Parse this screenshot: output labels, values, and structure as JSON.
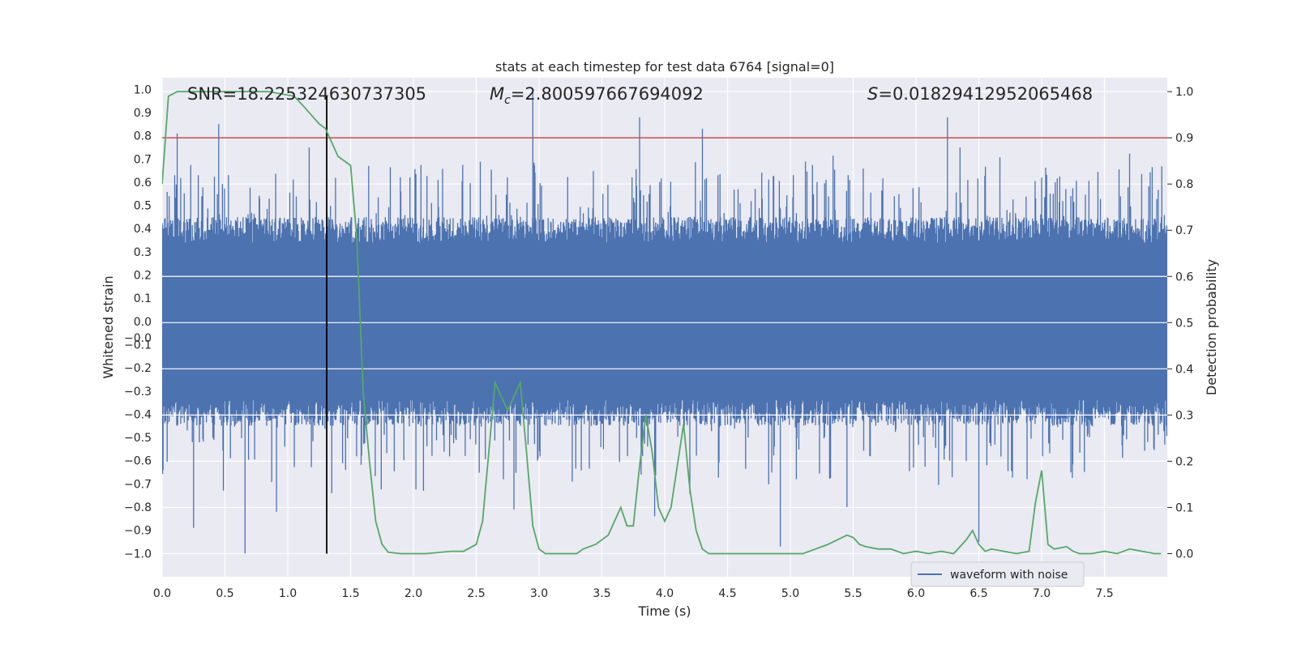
{
  "chart_data": {
    "type": "line",
    "title": "stats at each timestep for test data 6764 [signal=0]",
    "xlabel": "Time (s)",
    "ylabel_left": "Whitened strain",
    "ylabel_right": "Detection probability",
    "xlim": [
      0.0,
      8.0
    ],
    "ylim_left": [
      -1.1,
      1.05
    ],
    "ylim_right": [
      -0.05,
      1.03
    ],
    "x_ticks": [
      "0.0",
      "0.5",
      "1.0",
      "1.5",
      "2.0",
      "2.5",
      "3.0",
      "3.5",
      "4.0",
      "4.5",
      "5.0",
      "5.5",
      "6.0",
      "6.5",
      "7.0",
      "7.5"
    ],
    "y_left_ticks": [
      "1.0",
      "0.9",
      "0.8",
      "0.7",
      "0.6",
      "0.5",
      "0.4",
      "0.3",
      "0.2",
      "0.1",
      "0.0",
      "-0.0",
      "-0.1",
      "-0.2",
      "-0.3",
      "-0.4",
      "-0.5",
      "-0.6",
      "-0.7",
      "-0.8",
      "-0.9",
      "-1.0"
    ],
    "y_right_ticks": [
      "1.0",
      "0.9",
      "0.8",
      "0.7",
      "0.6",
      "0.5",
      "0.4",
      "0.3",
      "0.2",
      "0.1",
      "0.0"
    ],
    "annotations": {
      "snr": "SNR=18.225324630737305",
      "mc": "=2.800597667694092",
      "s": "=0.01829412952065468"
    },
    "threshold": 0.9,
    "marker_time": 1.31,
    "legend": {
      "label": "waveform with noise",
      "placement": "lower-right"
    },
    "series": [
      {
        "name": "waveform with noise",
        "color": "#4c72b0",
        "description": "noise-dominated whitened strain; peak amplitudes (data units)",
        "peaks_high": [
          [
            0.12,
            0.81
          ],
          [
            0.45,
            0.85
          ],
          [
            1.17,
            0.75
          ],
          [
            2.95,
            0.99
          ],
          [
            3.8,
            0.88
          ],
          [
            4.3,
            0.83
          ],
          [
            6.25,
            0.88
          ],
          [
            6.35,
            0.75
          ],
          [
            7.0,
            0.62
          ]
        ],
        "peaks_low": [
          [
            0.25,
            -0.89
          ],
          [
            0.66,
            -1.0
          ],
          [
            0.91,
            -0.82
          ],
          [
            1.35,
            -0.74
          ],
          [
            2.8,
            -0.81
          ],
          [
            3.92,
            -0.84
          ],
          [
            4.92,
            -0.97
          ],
          [
            5.45,
            -0.8
          ],
          [
            6.5,
            -0.95
          ]
        ]
      },
      {
        "name": "detection probability",
        "color": "#55a868",
        "axis": "right",
        "x": [
          0.0,
          0.05,
          0.12,
          0.3,
          0.6,
          0.85,
          1.05,
          1.12,
          1.25,
          1.3,
          1.4,
          1.5,
          1.55,
          1.6,
          1.65,
          1.7,
          1.75,
          1.8,
          1.9,
          2.1,
          2.3,
          2.4,
          2.5,
          2.55,
          2.6,
          2.65,
          2.7,
          2.75,
          2.8,
          2.85,
          2.9,
          2.95,
          3.0,
          3.05,
          3.15,
          3.3,
          3.35,
          3.45,
          3.55,
          3.6,
          3.65,
          3.7,
          3.75,
          3.8,
          3.85,
          3.9,
          3.95,
          4.0,
          4.05,
          4.1,
          4.15,
          4.2,
          4.25,
          4.3,
          4.35,
          4.5,
          4.8,
          5.0,
          5.1,
          5.2,
          5.3,
          5.45,
          5.5,
          5.55,
          5.6,
          5.7,
          5.8,
          5.9,
          6.0,
          6.1,
          6.2,
          6.3,
          6.4,
          6.45,
          6.5,
          6.55,
          6.6,
          6.7,
          6.8,
          6.9,
          6.95,
          7.0,
          7.05,
          7.1,
          7.2,
          7.25,
          7.3,
          7.4,
          7.5,
          7.6,
          7.7,
          7.8,
          7.9,
          7.95
        ],
        "values": [
          0.8,
          0.99,
          1.0,
          1.0,
          1.0,
          1.0,
          0.99,
          0.97,
          0.93,
          0.92,
          0.86,
          0.84,
          0.68,
          0.35,
          0.2,
          0.07,
          0.02,
          0.003,
          0.0,
          0.0,
          0.005,
          0.005,
          0.02,
          0.07,
          0.22,
          0.37,
          0.34,
          0.31,
          0.34,
          0.37,
          0.22,
          0.06,
          0.01,
          0.0,
          0.0,
          0.0,
          0.01,
          0.02,
          0.04,
          0.07,
          0.1,
          0.06,
          0.06,
          0.19,
          0.3,
          0.22,
          0.1,
          0.07,
          0.1,
          0.19,
          0.28,
          0.14,
          0.05,
          0.01,
          0.0,
          0.0,
          0.0,
          0.0,
          0.0,
          0.01,
          0.02,
          0.04,
          0.035,
          0.02,
          0.015,
          0.01,
          0.01,
          0.0,
          0.005,
          0.0,
          0.005,
          0.0,
          0.03,
          0.05,
          0.02,
          0.005,
          0.01,
          0.005,
          0.0,
          0.005,
          0.11,
          0.18,
          0.02,
          0.01,
          0.015,
          0.005,
          0.0,
          0.0,
          0.005,
          0.0,
          0.01,
          0.005,
          0.0,
          0.0
        ]
      }
    ]
  }
}
